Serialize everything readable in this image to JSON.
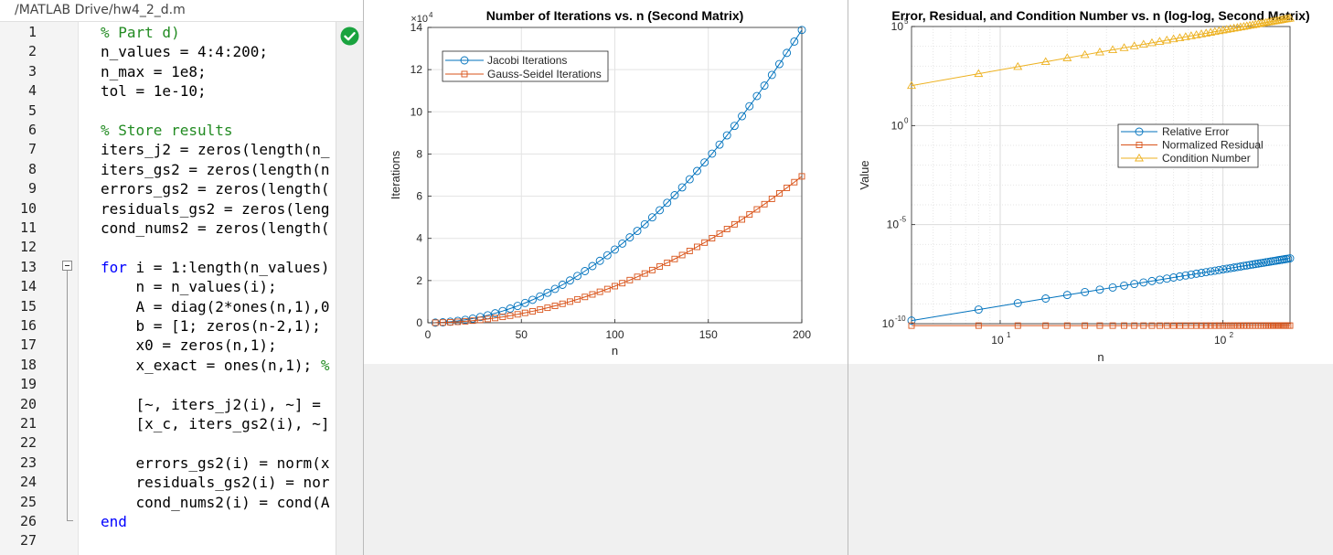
{
  "editor": {
    "path": "/MATLAB Drive/hw4_2_d.m",
    "lines": [
      {
        "n": "1",
        "tokens": [
          [
            "cm",
            "% Part d)"
          ]
        ]
      },
      {
        "n": "2",
        "tokens": [
          [
            "",
            "n_values = 4:4:200;"
          ]
        ]
      },
      {
        "n": "3",
        "tokens": [
          [
            "",
            "n_max = 1e8;"
          ]
        ]
      },
      {
        "n": "4",
        "tokens": [
          [
            "",
            "tol = 1e-10;"
          ]
        ]
      },
      {
        "n": "5",
        "tokens": []
      },
      {
        "n": "6",
        "tokens": [
          [
            "cm",
            "% Store results"
          ]
        ]
      },
      {
        "n": "7",
        "tokens": [
          [
            "",
            "iters_j2 = zeros(length(n_"
          ]
        ]
      },
      {
        "n": "8",
        "tokens": [
          [
            "",
            "iters_gs2 = zeros(length(n"
          ]
        ]
      },
      {
        "n": "9",
        "tokens": [
          [
            "",
            "errors_gs2 = zeros(length("
          ]
        ]
      },
      {
        "n": "10",
        "tokens": [
          [
            "",
            "residuals_gs2 = zeros(leng"
          ]
        ]
      },
      {
        "n": "11",
        "tokens": [
          [
            "",
            "cond_nums2 = zeros(length("
          ]
        ]
      },
      {
        "n": "12",
        "tokens": []
      },
      {
        "n": "13",
        "tokens": [
          [
            "kw",
            "for"
          ],
          [
            "",
            " i = 1:length(n_values)"
          ]
        ]
      },
      {
        "n": "14",
        "tokens": [
          [
            "",
            "    n = n_values(i);"
          ]
        ]
      },
      {
        "n": "15",
        "tokens": [
          [
            "",
            "    A = diag(2*ones(n,1),0"
          ]
        ]
      },
      {
        "n": "16",
        "tokens": [
          [
            "",
            "    b = [1; zeros(n-2,1); "
          ]
        ]
      },
      {
        "n": "17",
        "tokens": [
          [
            "",
            "    x0 = zeros(n,1);"
          ]
        ]
      },
      {
        "n": "18",
        "tokens": [
          [
            "",
            "    x_exact = ones(n,1); "
          ],
          [
            "cm",
            "%"
          ]
        ]
      },
      {
        "n": "19",
        "tokens": []
      },
      {
        "n": "20",
        "tokens": [
          [
            "",
            "    [~, iters_j2(i), ~] = "
          ]
        ]
      },
      {
        "n": "21",
        "tokens": [
          [
            "",
            "    [x_c, iters_gs2(i), ~]"
          ]
        ]
      },
      {
        "n": "22",
        "tokens": []
      },
      {
        "n": "23",
        "tokens": [
          [
            "",
            "    errors_gs2(i) = norm(x"
          ]
        ]
      },
      {
        "n": "24",
        "tokens": [
          [
            "",
            "    residuals_gs2(i) = nor"
          ]
        ]
      },
      {
        "n": "25",
        "tokens": [
          [
            "",
            "    cond_nums2(i) = cond(A"
          ]
        ]
      },
      {
        "n": "26",
        "tokens": [
          [
            "kw",
            "end"
          ]
        ]
      },
      {
        "n": "27",
        "tokens": []
      }
    ]
  },
  "icons": {
    "status": "check-circle-icon",
    "fold": "fold-minus-icon"
  },
  "colors": {
    "blue": "#0072bd",
    "orange": "#d95319",
    "yellow": "#edb120",
    "ok_green": "#1aa33f"
  },
  "chart_data": [
    {
      "type": "line",
      "title": "Number of Iterations vs. n (Second Matrix)",
      "xlabel": "n",
      "ylabel": "Iterations",
      "xlim": [
        0,
        200
      ],
      "ylim": [
        0,
        140000
      ],
      "x_ticks": [
        0,
        50,
        100,
        150,
        200
      ],
      "y_ticks": [
        0,
        20000,
        40000,
        60000,
        80000,
        100000,
        120000,
        140000
      ],
      "y_tick_labels": [
        "0",
        "2",
        "4",
        "6",
        "8",
        "10",
        "12",
        "14"
      ],
      "y_exponent_label": "×10",
      "y_exponent": "4",
      "grid": true,
      "legend_position": "top-left",
      "x": {
        "start": 4,
        "step": 4,
        "count": 50
      },
      "series": [
        {
          "name": "Jacobi Iterations",
          "color": "#0072bd",
          "marker": "circle",
          "coef": 3.47
        },
        {
          "name": "Gauss-Seidel Iterations",
          "color": "#d95319",
          "marker": "square",
          "coef": 1.735
        }
      ]
    },
    {
      "type": "line",
      "title": "Error, Residual, and Condition Number vs. n (log-log, Second Matrix)",
      "xlabel": "n",
      "ylabel": "Value",
      "xscale": "log",
      "yscale": "log",
      "xlim": [
        4,
        200
      ],
      "ylim": [
        1e-10,
        100000
      ],
      "x_tick_labels": [
        {
          "value": 10,
          "base": "10",
          "exp": "1"
        },
        {
          "value": 100,
          "base": "10",
          "exp": "2"
        }
      ],
      "y_tick_labels": [
        {
          "value": 1e-10,
          "base": "10",
          "exp": "-10"
        },
        {
          "value": 1e-05,
          "base": "10",
          "exp": "-5"
        },
        {
          "value": 1,
          "base": "10",
          "exp": "0"
        },
        {
          "value": 100000,
          "base": "10",
          "exp": "5"
        }
      ],
      "grid": true,
      "legend_position": "middle-right",
      "x": {
        "start": 4,
        "step": 4,
        "count": 50
      },
      "series": [
        {
          "name": "Relative Error",
          "color": "#0072bd",
          "marker": "circle",
          "coef": 1.1e-11,
          "power": 1.85
        },
        {
          "name": "Normalized Residual",
          "color": "#d95319",
          "marker": "square",
          "coef": 8e-11,
          "power": 0
        },
        {
          "name": "Condition Number",
          "color": "#edb120",
          "marker": "triangle",
          "coef": 6.48,
          "power": 2
        }
      ]
    }
  ]
}
